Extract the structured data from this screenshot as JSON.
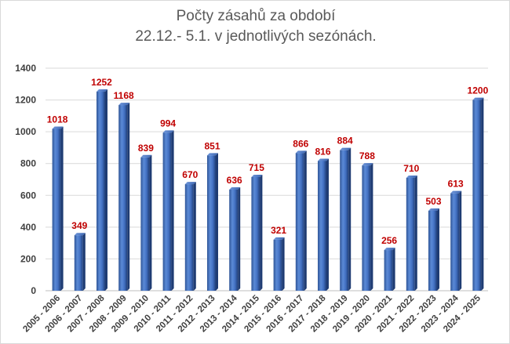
{
  "chart_data": {
    "type": "bar",
    "title": "Počty zásahů za období",
    "subtitle": "22.12.- 5.1. v jednotlivých sezónách.",
    "xlabel": "",
    "ylabel": "",
    "ylim": [
      0,
      1400
    ],
    "yticks": [
      0,
      200,
      400,
      600,
      800,
      1000,
      1200,
      1400
    ],
    "grid": true,
    "legend": "none",
    "bar_color": "#4472c4",
    "label_color": "#c00000",
    "categories": [
      "2005 - 2006",
      "2006 - 2007",
      "2007 - 2008",
      "2008 - 2009",
      "2009 - 2010",
      "2010 - 2011",
      "2011 - 2012",
      "2012 - 2013",
      "2013 - 2014",
      "2014 - 2015",
      "2015 - 2016",
      "2016 - 2017",
      "2017 - 2018",
      "2018 - 2019",
      "2019 - 2020",
      "2020 - 2021",
      "2021 - 2022",
      "2022 - 2023",
      "2023 - 2024",
      "2024 - 2025"
    ],
    "values": [
      1018,
      349,
      1252,
      1168,
      839,
      994,
      670,
      851,
      636,
      715,
      321,
      866,
      816,
      884,
      788,
      256,
      710,
      503,
      613,
      1200
    ]
  }
}
